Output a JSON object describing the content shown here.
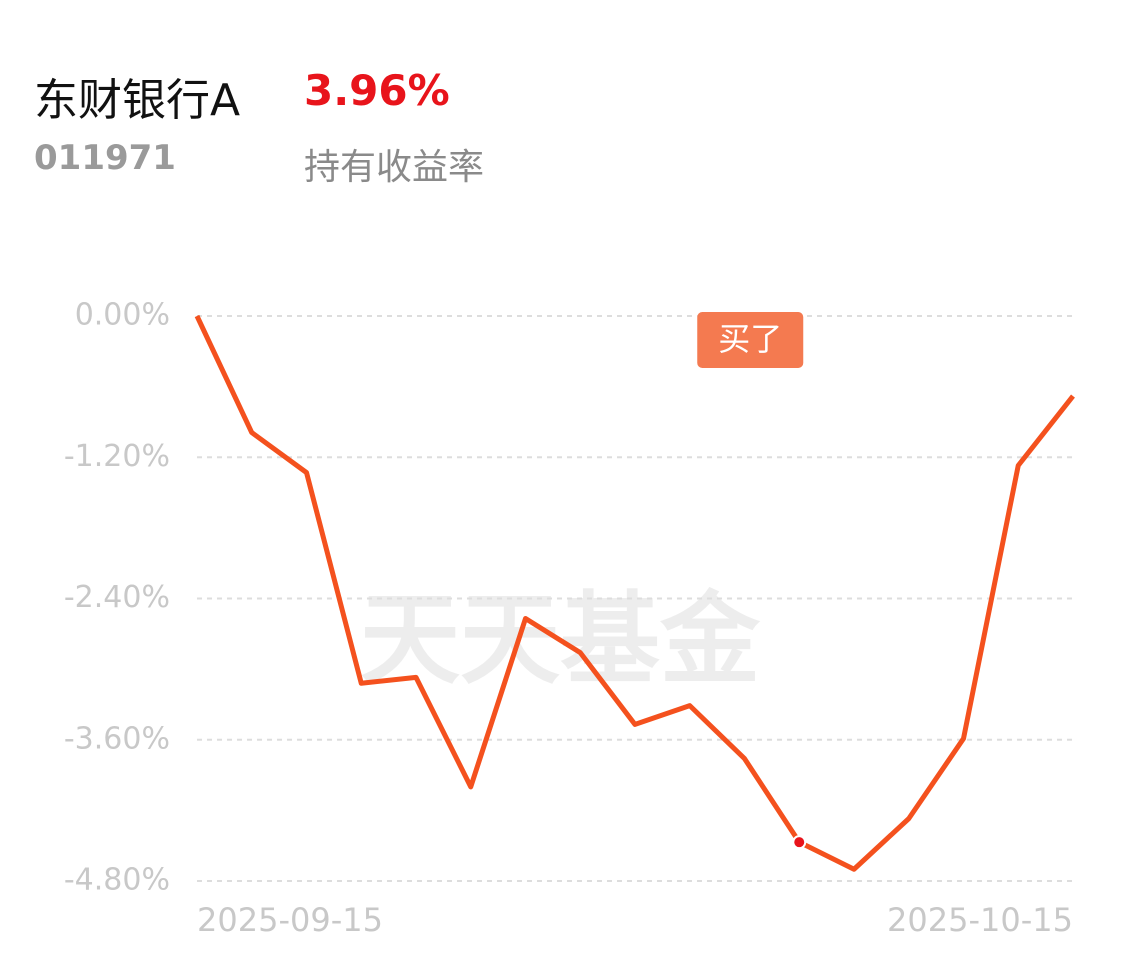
{
  "header": {
    "title": "东财银行A",
    "code": "011971",
    "return_value": "3.96%",
    "return_label": "持有收益率"
  },
  "chart_data": {
    "type": "line",
    "watermark": "天天基金",
    "categories": [
      "2025-09-15",
      null,
      null,
      null,
      null,
      null,
      null,
      null,
      null,
      null,
      null,
      null,
      null,
      null,
      null,
      null,
      "2025-10-15"
    ],
    "series": [
      {
        "name": "持有收益率",
        "color": "#f4511e",
        "values": [
          0.0,
          -0.99,
          -1.33,
          -3.12,
          -3.07,
          -4.0,
          -2.57,
          -2.86,
          -3.47,
          -3.31,
          -3.76,
          -4.47,
          -4.7,
          -4.27,
          -3.59,
          -1.27,
          -0.68
        ]
      }
    ],
    "ylim": [
      -4.8,
      0.0
    ],
    "yticks": [
      {
        "value": 0,
        "label": "0.00%"
      },
      {
        "value": -1.2,
        "label": "-1.20%"
      },
      {
        "value": -2.4,
        "label": "-2.40%"
      },
      {
        "value": -3.6,
        "label": "-3.60%"
      },
      {
        "value": -4.8,
        "label": "-4.80%"
      }
    ],
    "grid": true,
    "annotations": [
      {
        "text": "买了",
        "index": 11
      }
    ]
  }
}
